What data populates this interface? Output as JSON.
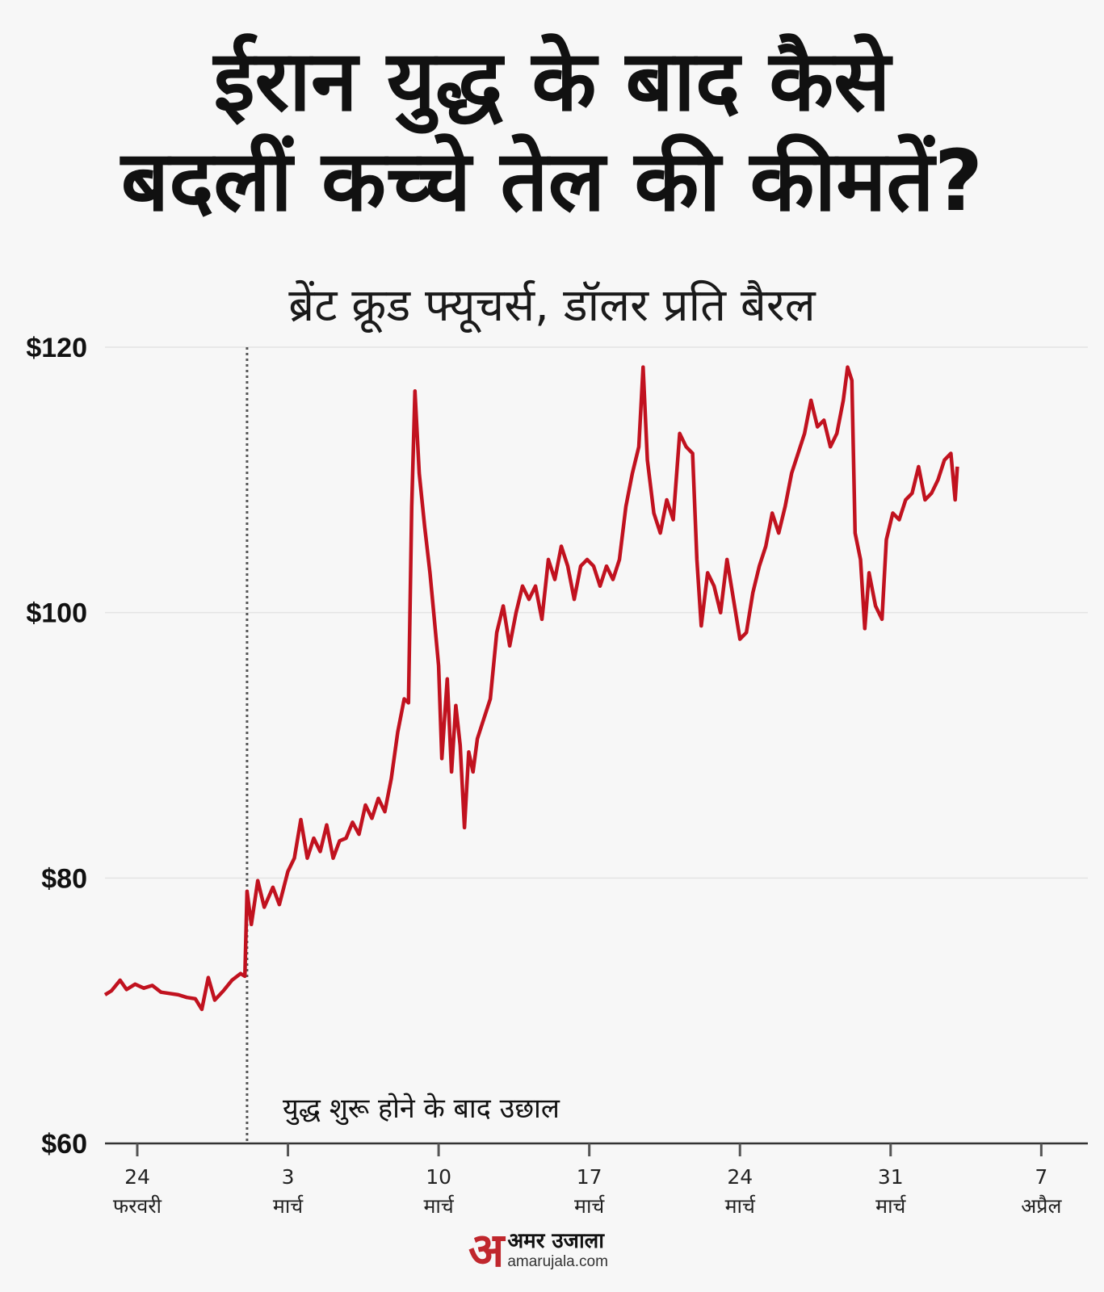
{
  "title": {
    "line1": "ईरान युद्ध के बाद कैसे",
    "line2": "बदलीं कच्चे तेल की कीमतें?"
  },
  "subtitle": "ब्रेंट क्रूड फ्यूचर्स, डॉलर प्रति बैरल",
  "annotation": "युद्ध शुरू होने के बाद उछाल",
  "brand": {
    "mark": "अ",
    "name_hi": "अमर उजाला",
    "name_en": "amarujala.com"
  },
  "colors": {
    "line": "#c1121f",
    "background": "#f7f7f7",
    "axis": "#333333",
    "grid": "#e4e4e4",
    "marker": "#555555"
  },
  "chart_data": {
    "type": "line",
    "ylabel": "",
    "xlabel": "",
    "ylim": [
      60,
      120
    ],
    "y_ticks": [
      "$60",
      "$80",
      "$100",
      "$120"
    ],
    "y_tick_values": [
      60,
      80,
      100,
      120
    ],
    "x_ticks": [
      {
        "day": 0,
        "label": [
          "24",
          "फरवरी"
        ]
      },
      {
        "day": 7,
        "label": [
          "3",
          "मार्च"
        ]
      },
      {
        "day": 14,
        "label": [
          "10",
          "मार्च"
        ]
      },
      {
        "day": 21,
        "label": [
          "17",
          "मार्च"
        ]
      },
      {
        "day": 28,
        "label": [
          "24",
          "मार्च"
        ]
      },
      {
        "day": 35,
        "label": [
          "31",
          "मार्च"
        ]
      },
      {
        "day": 42,
        "label": [
          "7",
          "अप्रैल"
        ]
      }
    ],
    "x_range": [
      -1.5,
      43
    ],
    "grid": true,
    "event_day": 5.1,
    "series": [
      {
        "values": [
          [
            -1.5,
            71.2
          ],
          [
            -1.2,
            71.5
          ],
          [
            -0.8,
            72.3
          ],
          [
            -0.5,
            71.6
          ],
          [
            -0.1,
            72.0
          ],
          [
            0.3,
            71.7
          ],
          [
            0.7,
            71.9
          ],
          [
            1.1,
            71.4
          ],
          [
            1.5,
            71.3
          ],
          [
            1.9,
            71.2
          ],
          [
            2.3,
            71.0
          ],
          [
            2.7,
            70.9
          ],
          [
            3.0,
            70.1
          ],
          [
            3.3,
            72.5
          ],
          [
            3.6,
            70.8
          ],
          [
            4.0,
            71.5
          ],
          [
            4.4,
            72.3
          ],
          [
            4.8,
            72.8
          ],
          [
            5.0,
            72.6
          ],
          [
            5.1,
            79.0
          ],
          [
            5.3,
            76.5
          ],
          [
            5.6,
            79.8
          ],
          [
            5.9,
            77.8
          ],
          [
            6.3,
            79.3
          ],
          [
            6.6,
            78.0
          ],
          [
            7.0,
            80.5
          ],
          [
            7.3,
            81.5
          ],
          [
            7.6,
            84.4
          ],
          [
            7.9,
            81.5
          ],
          [
            8.2,
            83.0
          ],
          [
            8.5,
            82.0
          ],
          [
            8.8,
            84.0
          ],
          [
            9.1,
            81.5
          ],
          [
            9.4,
            82.8
          ],
          [
            9.7,
            83.0
          ],
          [
            10.0,
            84.2
          ],
          [
            10.3,
            83.3
          ],
          [
            10.6,
            85.5
          ],
          [
            10.9,
            84.5
          ],
          [
            11.2,
            86.0
          ],
          [
            11.5,
            85.0
          ],
          [
            11.8,
            87.5
          ],
          [
            12.1,
            91.0
          ],
          [
            12.4,
            93.5
          ],
          [
            12.6,
            93.2
          ],
          [
            12.75,
            108.0
          ],
          [
            12.9,
            116.7
          ],
          [
            13.1,
            110.5
          ],
          [
            13.35,
            106.5
          ],
          [
            13.6,
            103.0
          ],
          [
            13.8,
            99.5
          ],
          [
            14.0,
            96.0
          ],
          [
            14.15,
            89.0
          ],
          [
            14.4,
            95.0
          ],
          [
            14.6,
            88.0
          ],
          [
            14.8,
            93.0
          ],
          [
            15.0,
            90.0
          ],
          [
            15.2,
            83.8
          ],
          [
            15.4,
            89.5
          ],
          [
            15.6,
            88.0
          ],
          [
            15.8,
            90.5
          ],
          [
            16.1,
            92.0
          ],
          [
            16.4,
            93.5
          ],
          [
            16.7,
            98.5
          ],
          [
            17.0,
            100.5
          ],
          [
            17.3,
            97.5
          ],
          [
            17.6,
            100.0
          ],
          [
            17.9,
            102.0
          ],
          [
            18.2,
            101.0
          ],
          [
            18.5,
            102.0
          ],
          [
            18.8,
            99.5
          ],
          [
            19.1,
            104.0
          ],
          [
            19.4,
            102.5
          ],
          [
            19.7,
            105.0
          ],
          [
            20.0,
            103.5
          ],
          [
            20.3,
            101.0
          ],
          [
            20.6,
            103.5
          ],
          [
            20.9,
            104.0
          ],
          [
            21.2,
            103.5
          ],
          [
            21.5,
            102.0
          ],
          [
            21.8,
            103.5
          ],
          [
            22.1,
            102.5
          ],
          [
            22.4,
            104.0
          ],
          [
            22.7,
            108.0
          ],
          [
            23.0,
            110.5
          ],
          [
            23.3,
            112.5
          ],
          [
            23.5,
            118.5
          ],
          [
            23.7,
            111.5
          ],
          [
            24.0,
            107.5
          ],
          [
            24.3,
            106.0
          ],
          [
            24.6,
            108.5
          ],
          [
            24.9,
            107.0
          ],
          [
            25.2,
            113.5
          ],
          [
            25.5,
            112.5
          ],
          [
            25.8,
            112.0
          ],
          [
            26.0,
            104.0
          ],
          [
            26.2,
            99.0
          ],
          [
            26.5,
            103.0
          ],
          [
            26.8,
            102.0
          ],
          [
            27.1,
            100.0
          ],
          [
            27.4,
            104.0
          ],
          [
            27.7,
            101.0
          ],
          [
            28.0,
            98.0
          ],
          [
            28.3,
            98.5
          ],
          [
            28.6,
            101.5
          ],
          [
            28.9,
            103.5
          ],
          [
            29.2,
            105.0
          ],
          [
            29.5,
            107.5
          ],
          [
            29.8,
            106.0
          ],
          [
            30.1,
            108.0
          ],
          [
            30.4,
            110.5
          ],
          [
            30.7,
            112.0
          ],
          [
            31.0,
            113.5
          ],
          [
            31.3,
            116.0
          ],
          [
            31.6,
            114.0
          ],
          [
            31.9,
            114.5
          ],
          [
            32.2,
            112.5
          ],
          [
            32.5,
            113.5
          ],
          [
            32.8,
            116.0
          ],
          [
            33.0,
            118.5
          ],
          [
            33.2,
            117.5
          ],
          [
            33.35,
            106.0
          ],
          [
            33.6,
            104.0
          ],
          [
            33.8,
            98.8
          ],
          [
            34.0,
            103.0
          ],
          [
            34.3,
            100.5
          ],
          [
            34.6,
            99.5
          ],
          [
            34.8,
            105.5
          ],
          [
            35.1,
            107.5
          ],
          [
            35.4,
            107.0
          ],
          [
            35.7,
            108.5
          ],
          [
            36.0,
            109.0
          ],
          [
            36.3,
            111.0
          ],
          [
            36.6,
            108.5
          ],
          [
            36.9,
            109.0
          ],
          [
            37.2,
            110.0
          ],
          [
            37.5,
            111.5
          ],
          [
            37.8,
            112.0
          ],
          [
            38.0,
            108.5
          ],
          [
            38.1,
            111.0
          ]
        ]
      }
    ]
  }
}
